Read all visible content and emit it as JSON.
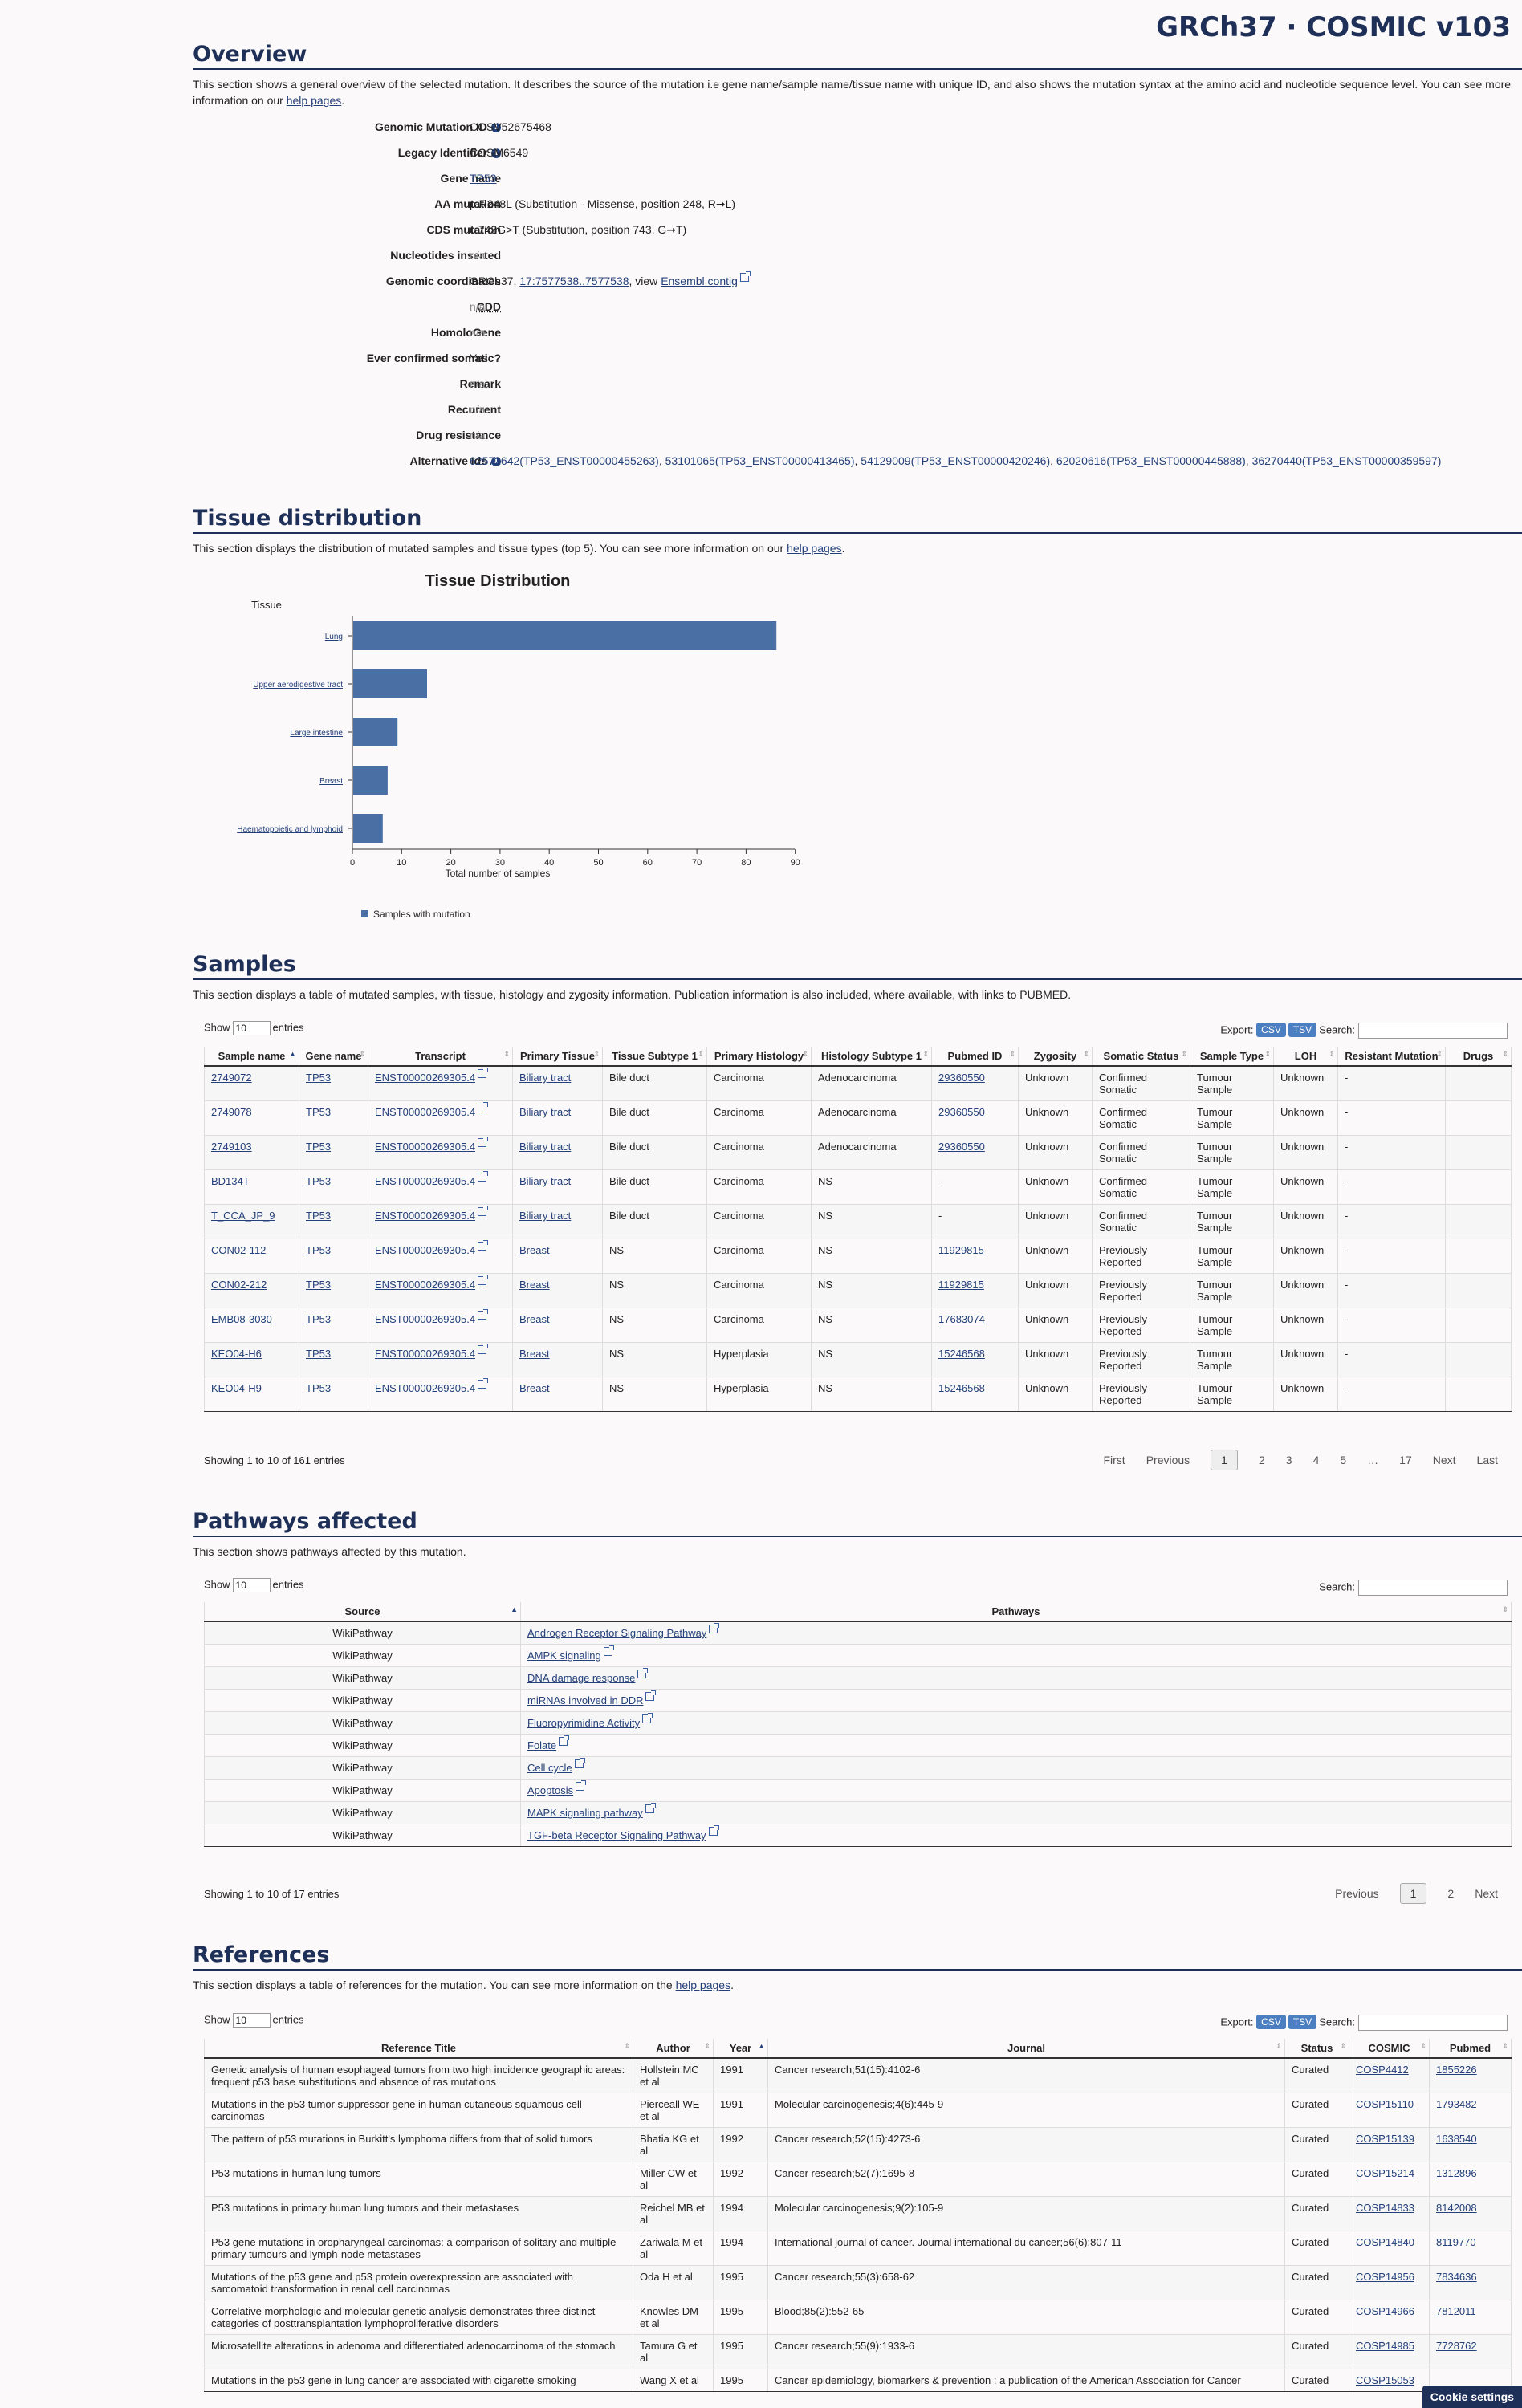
{
  "brand": "GRCh37 · COSMIC v103",
  "overview": {
    "title": "Overview",
    "desc": "This section shows a general overview of the selected mutation. It describes the source of the mutation i.e gene name/sample name/tissue name with unique ID, and also shows the mutation syntax at the amino acid and nucleotide sequence level. You can see more information on our",
    "help": "help pages",
    "fields": {
      "gmid_k": "Genomic Mutation ID",
      "gmid_v": "COSV52675468",
      "legacy_k": "Legacy Identifier",
      "legacy_v": "COSM6549",
      "gene_k": "Gene name",
      "gene_v": "TP53",
      "aa_k": "AA mutation",
      "aa_v": "p.R248L (Substitution - Missense, position 248, R➞L)",
      "cds_k": "CDS mutation",
      "cds_v": "c.743G>T (Substitution, position 743, G➞T)",
      "nuc_k": "Nucleotides inserted",
      "nuc_v": "n/a",
      "coord_k": "Genomic coordinates",
      "coord_pre": "GRCh37,",
      "coord_link": "17:7577538..7577538",
      "coord_mid": ", view",
      "coord_ens": "Ensembl contig",
      "cdd_k": "CDD",
      "cdd_v": "n/a",
      "homo_k": "HomoloGene",
      "homo_v": "n/a",
      "ever_k": "Ever confirmed somatic?",
      "ever_v": "Yes",
      "remark_k": "Remark",
      "remark_v": "n/a",
      "recur_k": "Recurrent",
      "recur_v": "n/a",
      "drug_k": "Drug resistance",
      "drug_v": "n/a",
      "alt_k": "Alternative Ids",
      "alt": [
        "62572642(TP53_ENST00000455263)",
        "53101065(TP53_ENST00000413465)",
        "54129009(TP53_ENST00000420246)",
        "62020616(TP53_ENST00000445888)",
        "36270440(TP53_ENST00000359597)"
      ]
    }
  },
  "tissue": {
    "title": "Tissue distribution",
    "desc": "This section displays the distribution of mutated samples and tissue types (top 5). You can see more information on our",
    "help": "help pages"
  },
  "chart_data": {
    "type": "bar",
    "orientation": "horizontal",
    "title": "Tissue Distribution",
    "ylabel": "Tissue",
    "xlabel": "Total number of samples",
    "categories": [
      "Lung",
      "Upper aerodigestive tract",
      "Large intestine",
      "Breast",
      "Haematopoietic and lymphoid"
    ],
    "values": [
      86,
      15,
      9,
      7,
      6
    ],
    "xlim": [
      0,
      90
    ],
    "xticks": [
      "0",
      "10",
      "20",
      "30",
      "40",
      "50",
      "60",
      "70",
      "80",
      "90"
    ],
    "series": [
      {
        "name": "Samples with mutation",
        "color": "#4a6fa5"
      }
    ],
    "legend_position": "bottom-left",
    "grid": false
  },
  "samples": {
    "title": "Samples",
    "desc": "This section displays a table of mutated samples, with tissue, histology and zygosity information. Publication information is also included, where available, with links to PUBMED.",
    "show": "Show",
    "entries_n": "10",
    "entries": "entries",
    "export": "Export:",
    "csv": "CSV",
    "tsv": "TSV",
    "search": "Search:",
    "headers": [
      "Sample name",
      "Gene name",
      "Transcript",
      "Primary Tissue",
      "Tissue Subtype 1",
      "Primary Histology",
      "Histology Subtype 1",
      "Pubmed ID",
      "Zygosity",
      "Somatic Status",
      "Sample Type",
      "LOH",
      "Resistant Mutation",
      "Drugs"
    ],
    "rows": [
      [
        "2749072",
        "TP53",
        "ENST00000269305.4",
        "Biliary tract",
        "Bile duct",
        "Carcinoma",
        "Adenocarcinoma",
        "29360550",
        "Unknown",
        "Confirmed Somatic",
        "Tumour Sample",
        "Unknown",
        "-",
        ""
      ],
      [
        "2749078",
        "TP53",
        "ENST00000269305.4",
        "Biliary tract",
        "Bile duct",
        "Carcinoma",
        "Adenocarcinoma",
        "29360550",
        "Unknown",
        "Confirmed Somatic",
        "Tumour Sample",
        "Unknown",
        "-",
        ""
      ],
      [
        "2749103",
        "TP53",
        "ENST00000269305.4",
        "Biliary tract",
        "Bile duct",
        "Carcinoma",
        "Adenocarcinoma",
        "29360550",
        "Unknown",
        "Confirmed Somatic",
        "Tumour Sample",
        "Unknown",
        "-",
        ""
      ],
      [
        "BD134T",
        "TP53",
        "ENST00000269305.4",
        "Biliary tract",
        "Bile duct",
        "Carcinoma",
        "NS",
        "-",
        "Unknown",
        "Confirmed Somatic",
        "Tumour Sample",
        "Unknown",
        "-",
        ""
      ],
      [
        "T_CCA_JP_9",
        "TP53",
        "ENST00000269305.4",
        "Biliary tract",
        "Bile duct",
        "Carcinoma",
        "NS",
        "-",
        "Unknown",
        "Confirmed Somatic",
        "Tumour Sample",
        "Unknown",
        "-",
        ""
      ],
      [
        "CON02-112",
        "TP53",
        "ENST00000269305.4",
        "Breast",
        "NS",
        "Carcinoma",
        "NS",
        "11929815",
        "Unknown",
        "Previously Reported",
        "Tumour Sample",
        "Unknown",
        "-",
        ""
      ],
      [
        "CON02-212",
        "TP53",
        "ENST00000269305.4",
        "Breast",
        "NS",
        "Carcinoma",
        "NS",
        "11929815",
        "Unknown",
        "Previously Reported",
        "Tumour Sample",
        "Unknown",
        "-",
        ""
      ],
      [
        "EMB08-3030",
        "TP53",
        "ENST00000269305.4",
        "Breast",
        "NS",
        "Carcinoma",
        "NS",
        "17683074",
        "Unknown",
        "Previously Reported",
        "Tumour Sample",
        "Unknown",
        "-",
        ""
      ],
      [
        "KEO04-H6",
        "TP53",
        "ENST00000269305.4",
        "Breast",
        "NS",
        "Hyperplasia",
        "NS",
        "15246568",
        "Unknown",
        "Previously Reported",
        "Tumour Sample",
        "Unknown",
        "-",
        ""
      ],
      [
        "KEO04-H9",
        "TP53",
        "ENST00000269305.4",
        "Breast",
        "NS",
        "Hyperplasia",
        "NS",
        "15246568",
        "Unknown",
        "Previously Reported",
        "Tumour Sample",
        "Unknown",
        "-",
        ""
      ]
    ],
    "showing": "Showing 1 to 10 of 161 entries",
    "pages": [
      "First",
      "Previous",
      "1",
      "2",
      "3",
      "4",
      "5",
      "…",
      "17",
      "Next",
      "Last"
    ]
  },
  "pathways": {
    "title": "Pathways affected",
    "desc": "This section shows pathways affected by this mutation.",
    "show": "Show",
    "entries_n": "10",
    "entries": "entries",
    "search": "Search:",
    "headers": [
      "Source",
      "Pathways"
    ],
    "rows": [
      [
        "WikiPathway",
        "Androgen Receptor Signaling Pathway"
      ],
      [
        "WikiPathway",
        "AMPK signaling"
      ],
      [
        "WikiPathway",
        "DNA damage response"
      ],
      [
        "WikiPathway",
        "miRNAs involved in DDR"
      ],
      [
        "WikiPathway",
        "Fluoropyrimidine Activity"
      ],
      [
        "WikiPathway",
        "Folate"
      ],
      [
        "WikiPathway",
        "Cell cycle"
      ],
      [
        "WikiPathway",
        "Apoptosis"
      ],
      [
        "WikiPathway",
        "MAPK signaling pathway"
      ],
      [
        "WikiPathway",
        "TGF-beta Receptor Signaling Pathway"
      ]
    ],
    "showing": "Showing 1 to 10 of 17 entries",
    "pages": [
      "Previous",
      "1",
      "2",
      "Next"
    ]
  },
  "references": {
    "title": "References",
    "desc": "This section displays a table of references for the mutation. You can see more information on the",
    "help": "help pages",
    "show": "Show",
    "entries_n": "10",
    "entries": "entries",
    "export": "Export:",
    "csv": "CSV",
    "tsv": "TSV",
    "search": "Search:",
    "headers": [
      "Reference Title",
      "Author",
      "Year",
      "Journal",
      "Status",
      "COSMIC",
      "Pubmed"
    ],
    "rows": [
      [
        "Genetic analysis of human esophageal tumors from two high incidence geographic areas: frequent p53 base substitutions and absence of ras mutations",
        "Hollstein MC et al",
        "1991",
        "Cancer research;51(15):4102-6",
        "Curated",
        "COSP4412",
        "1855226"
      ],
      [
        "Mutations in the p53 tumor suppressor gene in human cutaneous squamous cell carcinomas",
        "Pierceall WE et al",
        "1991",
        "Molecular carcinogenesis;4(6):445-9",
        "Curated",
        "COSP15110",
        "1793482"
      ],
      [
        "The pattern of p53 mutations in Burkitt's lymphoma differs from that of solid tumors",
        "Bhatia KG et al",
        "1992",
        "Cancer research;52(15):4273-6",
        "Curated",
        "COSP15139",
        "1638540"
      ],
      [
        "P53 mutations in human lung tumors",
        "Miller CW et al",
        "1992",
        "Cancer research;52(7):1695-8",
        "Curated",
        "COSP15214",
        "1312896"
      ],
      [
        "P53 mutations in primary human lung tumors and their metastases",
        "Reichel MB et al",
        "1994",
        "Molecular carcinogenesis;9(2):105-9",
        "Curated",
        "COSP14833",
        "8142008"
      ],
      [
        "P53 gene mutations in oropharyngeal carcinomas: a comparison of solitary and multiple primary tumours and lymph-node metastases",
        "Zariwala M et al",
        "1994",
        "International journal of cancer. Journal international du cancer;56(6):807-11",
        "Curated",
        "COSP14840",
        "8119770"
      ],
      [
        "Mutations of the p53 gene and p53 protein overexpression are associated with sarcomatoid transformation in renal cell carcinomas",
        "Oda H et al",
        "1995",
        "Cancer research;55(3):658-62",
        "Curated",
        "COSP14956",
        "7834636"
      ],
      [
        "Correlative morphologic and molecular genetic analysis demonstrates three distinct categories of posttransplantation lymphoproliferative disorders",
        "Knowles DM et al",
        "1995",
        "Blood;85(2):552-65",
        "Curated",
        "COSP14966",
        "7812011"
      ],
      [
        "Microsatellite alterations in adenoma and differentiated adenocarcinoma of the stomach",
        "Tamura G et al",
        "1995",
        "Cancer research;55(9):1933-6",
        "Curated",
        "COSP14985",
        "7728762"
      ],
      [
        "Mutations in the p53 gene in lung cancer are associated with cigarette smoking",
        "Wang X et al",
        "1995",
        "Cancer epidemiology, biomarkers & prevention : a publication of the American Association for Cancer",
        "Curated",
        "COSP15053",
        ""
      ]
    ]
  },
  "cookie": "Cookie settings"
}
